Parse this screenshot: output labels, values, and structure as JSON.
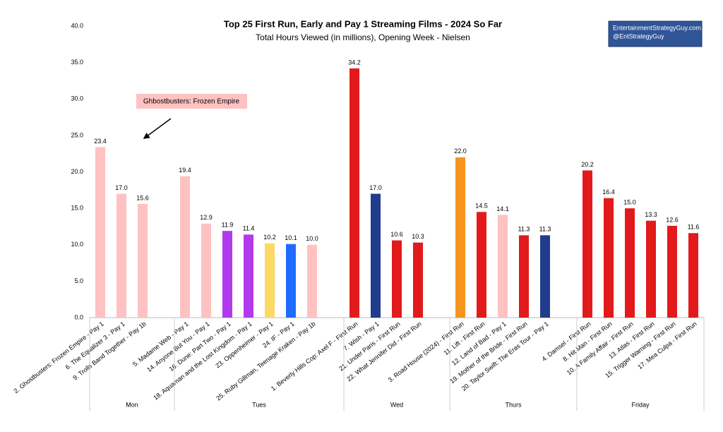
{
  "chart_data": {
    "type": "bar",
    "title": "Top 25 First Run, Early and Pay 1 Streaming Films - 2024 So Far",
    "subtitle": "Total Hours Viewed (in millions), Opening Week - Nielsen",
    "annotation": "Ghbostbusters: Frozen Empire",
    "credit": [
      "EntertainmentStrategyGuy.com",
      "@EntStrategyGuy"
    ],
    "categories": [
      "2. Ghostbusters: Frozen Empire - Pay 1",
      "6. The Equalizer 3 - Pay 1",
      "9. Trolls Band Together - Pay 1b",
      null,
      "5. Madame Web - Pay 1",
      "14. Anyone But You - Pay 1",
      "16. Dune: Part Two - Pay 1",
      "18. Aquaman and the Lost Kingdom - Pay 1",
      "23. Oppenheimer - Pay 1",
      "24. IF - Pay 1",
      "25. Ruby Gillman, Teenage Kraken - Pay 1b",
      null,
      "1. Beverly Hills Cop: Axel F - First Run",
      "7. Wish - Pay 1",
      "21. Under Paris - First Run",
      "22. What Jennifer Did - First Run",
      null,
      "3. Road House (2024) - First Run",
      "11. Lift - First Run",
      "12. Land of Bad - Pay 1",
      "19. Mother of the Bride - First Run",
      "20. Taylor Swift: The Eras Tour - Pay 1",
      null,
      "4. Damsel - First Run",
      "8. Hit Man - First Run",
      "10. A Family Affair - First Run",
      "13. Atlas - First Run",
      "15. Trigger Warning - First Run",
      "17. Mea Culpa - First Run"
    ],
    "values": [
      23.4,
      17.0,
      15.6,
      null,
      19.4,
      12.9,
      11.9,
      11.4,
      10.2,
      10.1,
      10.0,
      null,
      34.2,
      17.0,
      10.6,
      10.3,
      null,
      22.0,
      14.5,
      14.1,
      11.3,
      11.3,
      null,
      20.2,
      16.4,
      15.0,
      13.3,
      12.6,
      11.6
    ],
    "value_labels": [
      "23.4",
      "17.0",
      "15.6",
      null,
      "19.4",
      "12.9",
      "11.9",
      "11.4",
      "10.2",
      "10.1",
      "10.0",
      null,
      "34.2",
      "17.0",
      "10.6",
      "10.3",
      null,
      "22.0",
      "14.5",
      "14.1",
      "11.3",
      "11.3",
      null,
      "20.2",
      "16.4",
      "15.0",
      "13.3",
      "12.6",
      "11.6"
    ],
    "colors": [
      "#ffc1c1",
      "#ffc1c1",
      "#ffc1c1",
      null,
      "#ffc1c1",
      "#ffc1c1",
      "#b23aee",
      "#b23aee",
      "#ffd966",
      "#1f6cff",
      "#ffc1c1",
      null,
      "#e31a1c",
      "#1f3d8c",
      "#e31a1c",
      "#e31a1c",
      null,
      "#f7941d",
      "#e31a1c",
      "#ffc1c1",
      "#e31a1c",
      "#1f3d8c",
      null,
      "#e31a1c",
      "#e31a1c",
      "#e31a1c",
      "#e31a1c",
      "#e31a1c",
      "#e31a1c"
    ],
    "groups": [
      "Mon",
      "Tues",
      "Wed",
      "Thurs",
      "Friday"
    ],
    "ylim": [
      0,
      40
    ],
    "yticks": [
      {
        "value": 0,
        "label": "0.0"
      },
      {
        "value": 5,
        "label": "5.0"
      },
      {
        "value": 10,
        "label": "10.0"
      },
      {
        "value": 15,
        "label": "15.0"
      },
      {
        "value": 20,
        "label": "20.0"
      },
      {
        "value": 25,
        "label": "25.0"
      },
      {
        "value": 30,
        "label": "30.0"
      },
      {
        "value": 35,
        "label": "35.0"
      },
      {
        "value": 40,
        "label": "40.0"
      }
    ],
    "grid": false
  }
}
